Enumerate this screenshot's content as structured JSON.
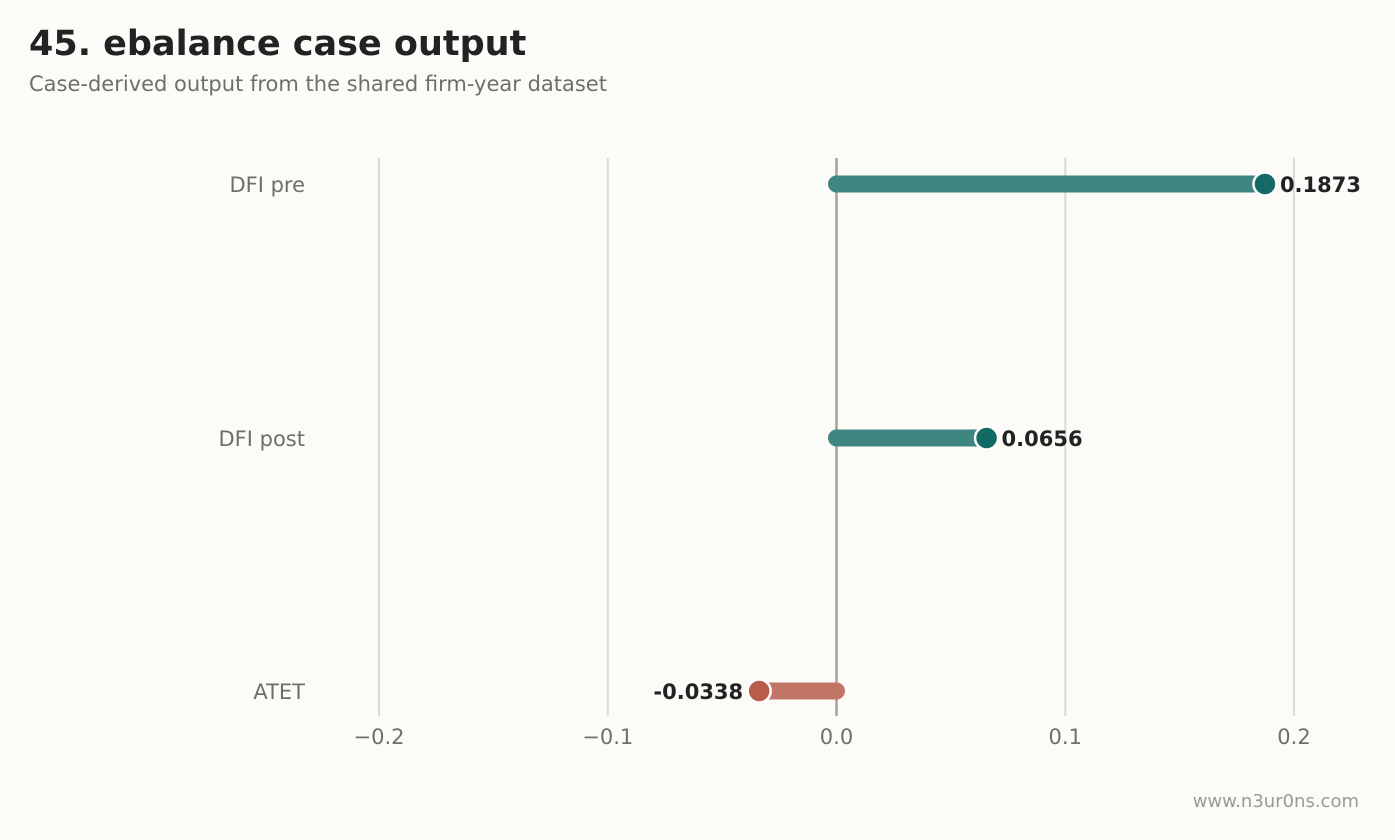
{
  "header": {
    "title": "45. ebalance case output",
    "subtitle": "Case-derived output from the shared firm-year dataset"
  },
  "footer": {
    "watermark": "www.n3ur0ns.com"
  },
  "colors": {
    "positive_bar": "#3f8580",
    "positive_dot": "#136a64",
    "negative_bar": "#c27567",
    "negative_dot": "#b85c4b",
    "grid": "#dcdad4",
    "zero_line": "#a3a19c"
  },
  "chart_data": {
    "type": "bar",
    "orientation": "horizontal",
    "style": "lollipop",
    "categories": [
      "DFI pre",
      "DFI post",
      "ATET"
    ],
    "values": [
      0.1873,
      0.0656,
      -0.0338
    ],
    "value_labels": [
      "0.1873",
      "0.0656",
      "-0.0338"
    ],
    "xlim": [
      -0.2,
      0.2
    ],
    "xticks": [
      -0.2,
      -0.1,
      0.0,
      0.1,
      0.2
    ],
    "xtick_labels": [
      "−0.2",
      "−0.1",
      "0.0",
      "0.1",
      "0.2"
    ],
    "grid": "vertical",
    "xlabel": "",
    "ylabel": ""
  }
}
